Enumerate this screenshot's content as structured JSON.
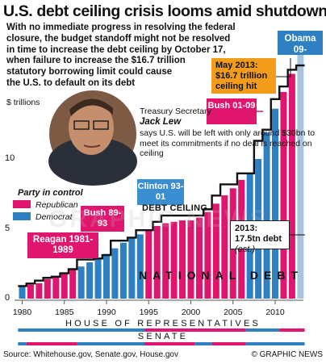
{
  "headline": "U.S. debt ceiling crisis looms amid shutdown",
  "intro": "With no immediate progress in resolving the federal\nclosure, the budget standoff might not be resolved\nin time to increase the debt ceiling by October 17,\nwhen failure to increase the $16.7 trillion\nstatutory borrowing limit could cause\nthe U.S. to default on its debt",
  "quote": {
    "title": "Treasury Secretary",
    "name": "Jack Lew",
    "text": "says U.S. will be left with only around $30bn to meet its commitments if no deal is reached on ceiling"
  },
  "presidents": {
    "obama": "Obama 09-",
    "bush": "Bush 01-09",
    "clinton": "Clinton 93-01",
    "bush_hw": "Bush 89-93",
    "reagan": "Reagan 1981-1989"
  },
  "callouts": {
    "may2013": "May 2013: $16.7 trillion ceiling hit",
    "debt2013_main": "2013: 17.5tn debt",
    "debt2013_est": "(est.)"
  },
  "legend": {
    "title": "Party in control",
    "republican": "Republican",
    "democrat": "Democrat"
  },
  "labels": {
    "debt_ceiling": "DEBT CEILING",
    "national_debt": "NATIONAL DEBT",
    "house": "HOUSE OF REPRESENTATIVES",
    "senate": "SENATE",
    "watermark": "GRAPHIC NEWS"
  },
  "footer": {
    "source": "Source: Whitehouse.gov, Senate.gov, House.gov",
    "credit": "© GRAPHIC NEWS"
  },
  "colors": {
    "republican": "#e0166e",
    "democrat": "#2f7fc3",
    "ceiling_line": "#111111",
    "obama_bar": "#a9c4dc"
  },
  "chart_data": {
    "type": "bar",
    "title": "U.S. debt ceiling crisis looms amid shutdown",
    "ylabel": "$ trillions",
    "ylim": [
      0,
      18
    ],
    "yticks": [
      0,
      5,
      10
    ],
    "xticks": [
      1980,
      1985,
      1990,
      1995,
      2000,
      2005,
      2010
    ],
    "grid": false,
    "legend_placement": "left-middle",
    "years": [
      1980,
      1981,
      1982,
      1983,
      1984,
      1985,
      1986,
      1987,
      1988,
      1989,
      1990,
      1991,
      1992,
      1993,
      1994,
      1995,
      1996,
      1997,
      1998,
      1999,
      2000,
      2001,
      2002,
      2003,
      2004,
      2005,
      2006,
      2007,
      2008,
      2009,
      2010,
      2011,
      2012,
      2013
    ],
    "series": [
      {
        "name": "National debt",
        "values": [
          0.9,
          1.0,
          1.1,
          1.4,
          1.6,
          1.8,
          2.1,
          2.3,
          2.6,
          2.9,
          3.2,
          3.6,
          4.0,
          4.4,
          4.6,
          4.9,
          5.2,
          5.4,
          5.5,
          5.6,
          5.6,
          5.8,
          6.2,
          6.8,
          7.4,
          7.9,
          8.5,
          9.0,
          10.0,
          11.9,
          13.6,
          14.8,
          16.1,
          17.5
        ],
        "party": [
          "D",
          "R",
          "R",
          "R",
          "R",
          "R",
          "R",
          "D",
          "D",
          "D",
          "D",
          "D",
          "D",
          "D",
          "D",
          "R",
          "R",
          "R",
          "R",
          "R",
          "R",
          "R",
          "R",
          "R",
          "R",
          "R",
          "R",
          "D",
          "D",
          "D",
          "D",
          "R",
          "R",
          "R"
        ]
      },
      {
        "name": "Debt ceiling",
        "values": [
          0.9,
          1.08,
          1.29,
          1.49,
          1.57,
          1.82,
          2.11,
          2.8,
          2.8,
          2.87,
          3.12,
          4.15,
          4.15,
          4.37,
          4.9,
          4.9,
          5.5,
          5.95,
          5.95,
          5.95,
          5.95,
          5.95,
          6.4,
          7.38,
          8.18,
          8.18,
          8.97,
          8.97,
          11.3,
          12.1,
          14.29,
          15.19,
          16.39,
          16.7
        ]
      }
    ],
    "house_control": [
      {
        "from": 1980,
        "to": 1995,
        "party": "D"
      },
      {
        "from": 1995,
        "to": 2007,
        "party": "R"
      },
      {
        "from": 2007,
        "to": 2011,
        "party": "D"
      },
      {
        "from": 2011,
        "to": 2014,
        "party": "R"
      }
    ],
    "senate_control": [
      {
        "from": 1980,
        "to": 1981,
        "party": "D"
      },
      {
        "from": 1981,
        "to": 1987,
        "party": "R"
      },
      {
        "from": 1987,
        "to": 1995,
        "party": "D"
      },
      {
        "from": 1995,
        "to": 2001,
        "party": "R"
      },
      {
        "from": 2001,
        "to": 2003,
        "party": "D"
      },
      {
        "from": 2003,
        "to": 2007,
        "party": "R"
      },
      {
        "from": 2007,
        "to": 2014,
        "party": "D"
      }
    ]
  }
}
